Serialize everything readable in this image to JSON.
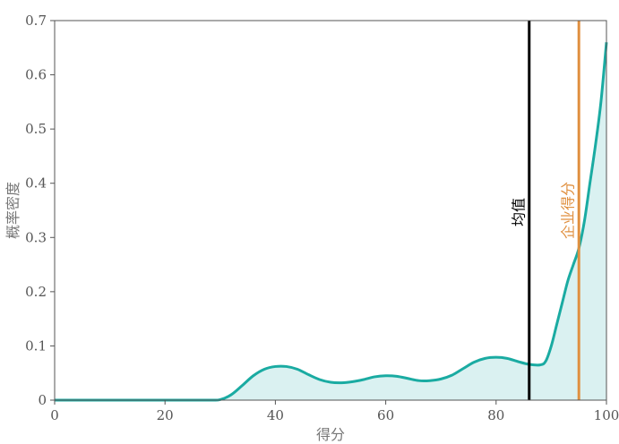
{
  "chart_data": {
    "type": "area",
    "title": "",
    "xlabel": "得分",
    "ylabel": "概率密度",
    "xlim": [
      0,
      100
    ],
    "ylim": [
      0,
      0.7
    ],
    "x_ticks": [
      "0",
      "20",
      "40",
      "60",
      "80",
      "100"
    ],
    "y_ticks": [
      "0",
      "0.1",
      "0.2",
      "0.3",
      "0.4",
      "0.5",
      "0.6",
      "0.7"
    ],
    "grid": false,
    "series": [
      {
        "type": "density",
        "color": "#1aaba2",
        "fill": "#daf1f1",
        "x": [
          0,
          10,
          20,
          28,
          30,
          32,
          34,
          36,
          38,
          40,
          42,
          44,
          46,
          48,
          50,
          52,
          54,
          56,
          58,
          60,
          62,
          64,
          66,
          68,
          70,
          72,
          74,
          76,
          78,
          80,
          82,
          84,
          86,
          88,
          89,
          90,
          91,
          92,
          93,
          94,
          95,
          96,
          97,
          98,
          99,
          100
        ],
        "y": [
          0,
          0,
          0,
          0,
          0.001,
          0.01,
          0.027,
          0.045,
          0.057,
          0.062,
          0.062,
          0.057,
          0.047,
          0.038,
          0.033,
          0.032,
          0.034,
          0.038,
          0.043,
          0.045,
          0.044,
          0.04,
          0.036,
          0.036,
          0.039,
          0.046,
          0.058,
          0.07,
          0.077,
          0.079,
          0.077,
          0.071,
          0.066,
          0.065,
          0.072,
          0.1,
          0.14,
          0.18,
          0.22,
          0.25,
          0.28,
          0.33,
          0.4,
          0.47,
          0.55,
          0.66
        ]
      }
    ],
    "markers": [
      {
        "label": "均值",
        "x": 86,
        "color": "#000000"
      },
      {
        "label": "企业得分",
        "x": 95,
        "color": "#e09040"
      }
    ]
  }
}
